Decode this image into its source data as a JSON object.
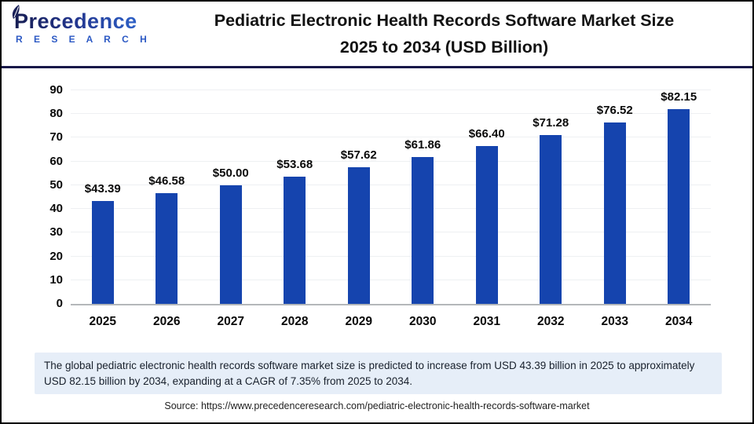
{
  "logo": {
    "name": "Precedence",
    "subname": "R E S E A R C H"
  },
  "title": {
    "line1": "Pediatric Electronic Health Records Software Market Size",
    "line2": "2025 to 2034 (USD Billion)"
  },
  "chart_data": {
    "type": "bar",
    "title": "Pediatric Electronic Health Records Software Market Size 2025 to 2034 (USD Billion)",
    "categories": [
      "2025",
      "2026",
      "2027",
      "2028",
      "2029",
      "2030",
      "2031",
      "2032",
      "2033",
      "2034"
    ],
    "values": [
      43.39,
      46.58,
      50.0,
      53.68,
      57.62,
      61.86,
      66.4,
      71.28,
      76.52,
      82.15
    ],
    "value_labels": [
      "$43.39",
      "$46.58",
      "$50.00",
      "$53.68",
      "$57.62",
      "$61.86",
      "$66.40",
      "$71.28",
      "$76.52",
      "$82.15"
    ],
    "xlabel": "",
    "ylabel": "",
    "ylim": [
      0,
      90
    ],
    "y_ticks": [
      0,
      10,
      20,
      30,
      40,
      50,
      60,
      70,
      80,
      90
    ],
    "grid": true,
    "legend": "none",
    "bar_color": "#1544ae",
    "baseline_color": "#b4b7ba",
    "gridline_color": "#eef0f2"
  },
  "summary": {
    "text": "The global pediatric electronic health records software market size is predicted to increase from USD 43.39 billion in 2025 to approximately USD 82.15 billion by 2034, expanding at a CAGR of 7.35% from 2025 to 2034."
  },
  "source": {
    "text": "Source: https://www.precedenceresearch.com/pediatric-electronic-health-records-software-market"
  },
  "colors": {
    "header_divider": "#181848",
    "summary_bg": "#e6eef8",
    "logo_blue_dark": "#161d52",
    "logo_blue_light": "#2f6ad4",
    "title_text": "#121212"
  }
}
